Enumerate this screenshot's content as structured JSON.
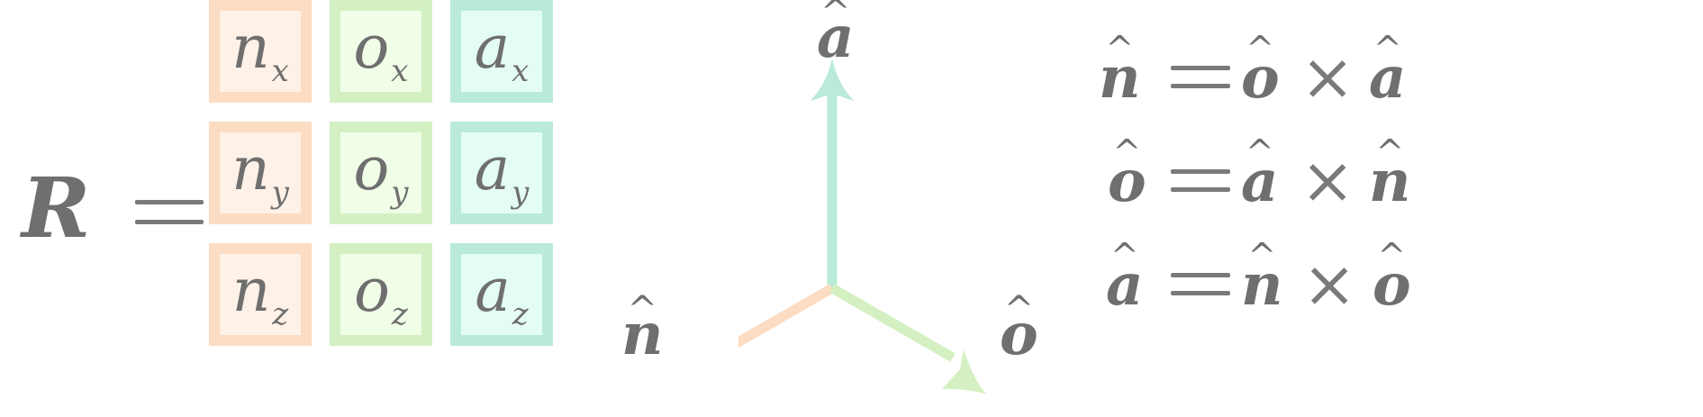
{
  "matrix": {
    "lhs": "R",
    "cells": [
      {
        "sym": "n",
        "sub": "x"
      },
      {
        "sym": "o",
        "sub": "x"
      },
      {
        "sym": "a",
        "sub": "x"
      },
      {
        "sym": "n",
        "sub": "y"
      },
      {
        "sym": "o",
        "sub": "y"
      },
      {
        "sym": "a",
        "sub": "y"
      },
      {
        "sym": "n",
        "sub": "z"
      },
      {
        "sym": "o",
        "sub": "z"
      },
      {
        "sym": "a",
        "sub": "z"
      }
    ]
  },
  "axes": {
    "a_label": "a",
    "n_label": "n",
    "o_label": "o",
    "hat": "^",
    "colors": {
      "n": "#fcdcc2",
      "o": "#d4f0c2",
      "a": "#b9ebd8"
    }
  },
  "relations": [
    {
      "lhs": "n",
      "op1": "o",
      "op2": "a"
    },
    {
      "lhs": "o",
      "op1": "a",
      "op2": "n"
    },
    {
      "lhs": "a",
      "op1": "n",
      "op2": "o"
    }
  ],
  "symbols": {
    "times": "×"
  }
}
